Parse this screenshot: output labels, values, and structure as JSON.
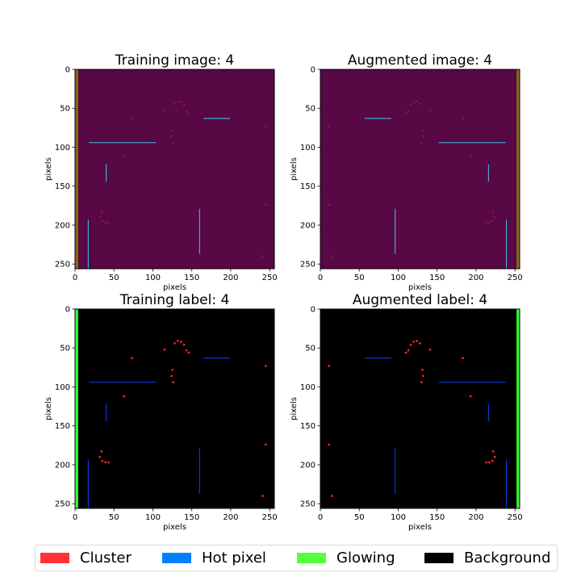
{
  "chart_data": [
    {
      "type": "heatmap",
      "title": "Training image: 4",
      "xlabel": "pixels",
      "ylabel": "pixels",
      "xlim": [
        0,
        256
      ],
      "ylim": [
        256,
        0
      ],
      "x_ticks": [
        0,
        50,
        100,
        150,
        200,
        250
      ],
      "y_ticks": [
        0,
        50,
        100,
        150,
        200,
        250
      ],
      "background_color": "#570845",
      "hot_pixel_color": "#3fa9d6",
      "cluster_color": "#7a1e3a",
      "glowing_color": "#8a6a14",
      "glowing_column": [
        0,
        4
      ],
      "hot_pixels_h": [
        {
          "y": 94,
          "x": [
            18,
            104
          ]
        },
        {
          "y": 63,
          "x": [
            165,
            199
          ]
        }
      ],
      "hot_pixels_v": [
        {
          "x": 40,
          "y": [
            122,
            144
          ]
        },
        {
          "x": 17,
          "y": [
            193,
            256
          ]
        },
        {
          "x": 160,
          "y": [
            179,
            237
          ]
        }
      ],
      "clusters": [
        [
          128,
          44
        ],
        [
          132,
          41
        ],
        [
          136,
          42
        ],
        [
          140,
          46
        ],
        [
          143,
          53
        ],
        [
          146,
          56
        ],
        [
          125,
          78
        ],
        [
          124,
          86
        ],
        [
          126,
          94
        ],
        [
          34,
          183
        ],
        [
          32,
          190
        ],
        [
          35,
          195
        ],
        [
          39,
          197
        ],
        [
          43,
          197
        ],
        [
          73,
          63
        ],
        [
          63,
          112
        ],
        [
          245,
          73
        ],
        [
          245,
          174
        ],
        [
          241,
          240
        ],
        [
          115,
          52
        ]
      ]
    },
    {
      "type": "heatmap",
      "title": "Augmented image: 4",
      "xlabel": "pixels",
      "ylabel": "pixels",
      "xlim": [
        0,
        256
      ],
      "ylim": [
        256,
        0
      ],
      "x_ticks": [
        0,
        50,
        100,
        150,
        200,
        250
      ],
      "y_ticks": [
        0,
        50,
        100,
        150,
        200,
        250
      ],
      "background_color": "#570845",
      "hot_pixel_color": "#3fa9d6",
      "cluster_color": "#7a1e3a",
      "glowing_color": "#8a6a14",
      "glowing_column": [
        252,
        256
      ],
      "hot_pixels_h": [
        {
          "y": 94,
          "x": [
            152,
            238
          ]
        },
        {
          "y": 63,
          "x": [
            57,
            91
          ]
        }
      ],
      "hot_pixels_v": [
        {
          "x": 216,
          "y": [
            122,
            144
          ]
        },
        {
          "x": 239,
          "y": [
            193,
            256
          ]
        },
        {
          "x": 96,
          "y": [
            179,
            237
          ]
        }
      ],
      "clusters": [
        [
          128,
          44
        ],
        [
          124,
          41
        ],
        [
          120,
          42
        ],
        [
          116,
          46
        ],
        [
          113,
          53
        ],
        [
          110,
          56
        ],
        [
          131,
          78
        ],
        [
          132,
          86
        ],
        [
          130,
          94
        ],
        [
          222,
          183
        ],
        [
          224,
          190
        ],
        [
          221,
          195
        ],
        [
          217,
          197
        ],
        [
          213,
          197
        ],
        [
          183,
          63
        ],
        [
          193,
          112
        ],
        [
          11,
          73
        ],
        [
          11,
          174
        ],
        [
          15,
          240
        ],
        [
          141,
          52
        ]
      ]
    },
    {
      "type": "heatmap",
      "title": "Training label: 4",
      "xlabel": "pixels",
      "ylabel": "pixels",
      "xlim": [
        0,
        256
      ],
      "ylim": [
        256,
        0
      ],
      "x_ticks": [
        0,
        50,
        100,
        150,
        200,
        250
      ],
      "y_ticks": [
        0,
        50,
        100,
        150,
        200,
        250
      ],
      "background_color": "#000000",
      "hot_pixel_color": "#0a3ad8",
      "cluster_color": "#ff2a2a",
      "glowing_color": "#33ff33",
      "glowing_column": [
        0,
        4
      ],
      "hot_pixels_h": [
        {
          "y": 94,
          "x": [
            18,
            104
          ]
        },
        {
          "y": 63,
          "x": [
            165,
            199
          ]
        }
      ],
      "hot_pixels_v": [
        {
          "x": 40,
          "y": [
            122,
            144
          ]
        },
        {
          "x": 17,
          "y": [
            193,
            256
          ]
        },
        {
          "x": 160,
          "y": [
            179,
            237
          ]
        }
      ],
      "clusters": [
        [
          128,
          44
        ],
        [
          132,
          41
        ],
        [
          136,
          42
        ],
        [
          140,
          46
        ],
        [
          143,
          53
        ],
        [
          146,
          56
        ],
        [
          125,
          78
        ],
        [
          124,
          86
        ],
        [
          126,
          94
        ],
        [
          34,
          183
        ],
        [
          32,
          190
        ],
        [
          35,
          195
        ],
        [
          39,
          197
        ],
        [
          43,
          197
        ],
        [
          73,
          63
        ],
        [
          63,
          112
        ],
        [
          245,
          73
        ],
        [
          245,
          174
        ],
        [
          241,
          240
        ],
        [
          115,
          52
        ]
      ]
    },
    {
      "type": "heatmap",
      "title": "Augmented label: 4",
      "xlabel": "pixels",
      "ylabel": "pixels",
      "xlim": [
        0,
        256
      ],
      "ylim": [
        256,
        0
      ],
      "x_ticks": [
        0,
        50,
        100,
        150,
        200,
        250
      ],
      "y_ticks": [
        0,
        50,
        100,
        150,
        200,
        250
      ],
      "background_color": "#000000",
      "hot_pixel_color": "#0a3ad8",
      "cluster_color": "#ff2a2a",
      "glowing_color": "#33ff33",
      "glowing_column": [
        252,
        256
      ],
      "hot_pixels_h": [
        {
          "y": 94,
          "x": [
            152,
            238
          ]
        },
        {
          "y": 63,
          "x": [
            57,
            91
          ]
        }
      ],
      "hot_pixels_v": [
        {
          "x": 216,
          "y": [
            122,
            144
          ]
        },
        {
          "x": 239,
          "y": [
            193,
            256
          ]
        },
        {
          "x": 96,
          "y": [
            179,
            237
          ]
        }
      ],
      "clusters": [
        [
          128,
          44
        ],
        [
          124,
          41
        ],
        [
          120,
          42
        ],
        [
          116,
          46
        ],
        [
          113,
          53
        ],
        [
          110,
          56
        ],
        [
          131,
          78
        ],
        [
          132,
          86
        ],
        [
          130,
          94
        ],
        [
          222,
          183
        ],
        [
          224,
          190
        ],
        [
          221,
          195
        ],
        [
          217,
          197
        ],
        [
          213,
          197
        ],
        [
          183,
          63
        ],
        [
          193,
          112
        ],
        [
          11,
          73
        ],
        [
          11,
          174
        ],
        [
          15,
          240
        ],
        [
          141,
          52
        ]
      ]
    }
  ],
  "legend": {
    "placement": "bottom",
    "items": [
      {
        "label": "Cluster",
        "color": "#ff3333"
      },
      {
        "label": "Hot pixel",
        "color": "#0080ff"
      },
      {
        "label": "Glowing",
        "color": "#55ff3d"
      },
      {
        "label": "Background",
        "color": "#000000"
      }
    ]
  }
}
